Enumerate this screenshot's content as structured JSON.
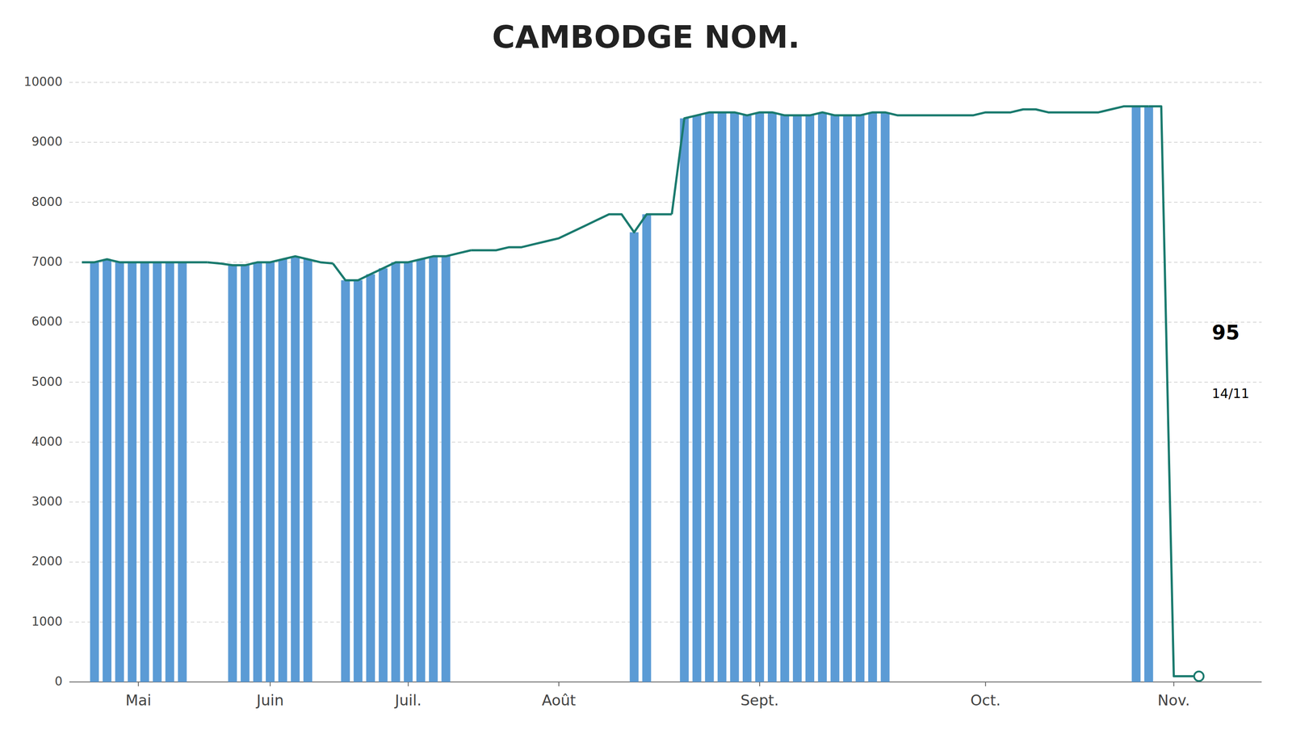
{
  "chart_data": {
    "type": "bar",
    "title": "CAMBODGE NOM.",
    "xlim": [
      0,
      95
    ],
    "xticks": [
      {
        "value": 5.5,
        "label": "Mai"
      },
      {
        "value": 16,
        "label": "Juin"
      },
      {
        "value": 27,
        "label": "Juil."
      },
      {
        "value": 39,
        "label": "Août"
      },
      {
        "value": 55,
        "label": "Sept."
      },
      {
        "value": 73,
        "label": "Oct."
      },
      {
        "value": 88,
        "label": "Nov."
      }
    ],
    "ylim": [
      0,
      10000
    ],
    "yticks": [
      0,
      1000,
      2000,
      3000,
      4000,
      5000,
      6000,
      7000,
      8000,
      9000,
      10000
    ],
    "grid": true,
    "annotations": [
      "95",
      "14/11"
    ],
    "series": [
      {
        "type": "bar",
        "color": "#5b9bd5",
        "x": [
          2,
          3,
          4,
          5,
          6,
          7,
          8,
          9
        ],
        "values": [
          7000,
          7050,
          7000,
          7000,
          7000,
          7000,
          7000,
          7000
        ]
      },
      {
        "type": "bar",
        "color": "#5b9bd5",
        "x": [
          13,
          14,
          15,
          16,
          17,
          18,
          19
        ],
        "values": [
          6950,
          6950,
          7000,
          7000,
          7050,
          7100,
          7050
        ]
      },
      {
        "type": "bar",
        "color": "#5b9bd5",
        "x": [
          22,
          23,
          24,
          25,
          26,
          27,
          28,
          29,
          30
        ],
        "values": [
          6700,
          6700,
          6800,
          6900,
          7000,
          7000,
          7050,
          7100,
          7100
        ]
      },
      {
        "type": "bar",
        "color": "#5b9bd5",
        "x": [
          45,
          46
        ],
        "values": [
          7500,
          7800
        ]
      },
      {
        "type": "bar",
        "color": "#5b9bd5",
        "x": [
          49,
          50,
          51,
          52,
          53,
          54,
          55,
          56,
          57,
          58,
          59,
          60,
          61,
          62,
          63,
          64,
          65
        ],
        "values": [
          9400,
          9450,
          9500,
          9500,
          9500,
          9450,
          9500,
          9500,
          9450,
          9450,
          9450,
          9500,
          9450,
          9450,
          9450,
          9500,
          9500
        ]
      },
      {
        "type": "bar",
        "color": "#5b9bd5",
        "x": [
          85,
          86
        ],
        "values": [
          9600,
          9600
        ]
      },
      {
        "type": "line",
        "color": "#1a7a6e",
        "x": [
          1,
          2,
          3,
          4,
          5,
          6,
          7,
          8,
          9,
          10,
          11
        ],
        "values": [
          7000,
          7000,
          7050,
          7000,
          7000,
          7000,
          7000,
          7000,
          7000,
          7000,
          7000
        ]
      },
      {
        "type": "line",
        "color": "#1a7a6e",
        "x": [
          11,
          12,
          13,
          14,
          15,
          16,
          17,
          18,
          19,
          20,
          21
        ],
        "values": [
          7000,
          6980,
          6950,
          6950,
          7000,
          7000,
          7050,
          7100,
          7050,
          7000,
          6980
        ]
      },
      {
        "type": "line",
        "color": "#1a7a6e",
        "x": [
          21,
          22,
          23,
          24,
          25,
          26,
          27,
          28,
          29,
          30,
          31,
          32
        ],
        "values": [
          6980,
          6700,
          6700,
          6800,
          6900,
          7000,
          7000,
          7050,
          7100,
          7100,
          7150,
          7200
        ]
      },
      {
        "type": "line",
        "color": "#1a7a6e",
        "x": [
          32,
          33,
          34,
          35,
          36,
          37,
          38,
          39,
          40,
          41,
          42,
          43,
          44,
          45,
          46,
          47,
          48
        ],
        "values": [
          7200,
          7200,
          7200,
          7250,
          7250,
          7300,
          7350,
          7400,
          7500,
          7600,
          7700,
          7800,
          7800,
          7500,
          7800,
          7800,
          7800
        ]
      },
      {
        "type": "line",
        "color": "#1a7a6e",
        "x": [
          48,
          49,
          50,
          51,
          52,
          53,
          54,
          55,
          56,
          57,
          58,
          59,
          60,
          61,
          62,
          63,
          64,
          65,
          66,
          67,
          68,
          69,
          70,
          71,
          72,
          73,
          74,
          75,
          76,
          77,
          78,
          79,
          80,
          81,
          82,
          83,
          84,
          85,
          86
        ],
        "values": [
          7800,
          9400,
          9450,
          9500,
          9500,
          9500,
          9450,
          9500,
          9500,
          9450,
          9450,
          9450,
          9500,
          9450,
          9450,
          9450,
          9500,
          9500,
          9450,
          9450,
          9450,
          9450,
          9450,
          9450,
          9450,
          9500,
          9500,
          9500,
          9550,
          9550,
          9500,
          9500,
          9500,
          9500,
          9500,
          9550,
          9600,
          9600,
          9600
        ]
      },
      {
        "type": "line",
        "color": "#1a7a6e",
        "x": [
          86,
          87,
          88,
          89,
          90
        ],
        "values": [
          9600,
          9600,
          95,
          95,
          95
        ]
      },
      {
        "type": "scatter",
        "color": "#1a7a6e",
        "marker": "circle",
        "x": [
          90
        ],
        "values": [
          95
        ]
      }
    ]
  }
}
